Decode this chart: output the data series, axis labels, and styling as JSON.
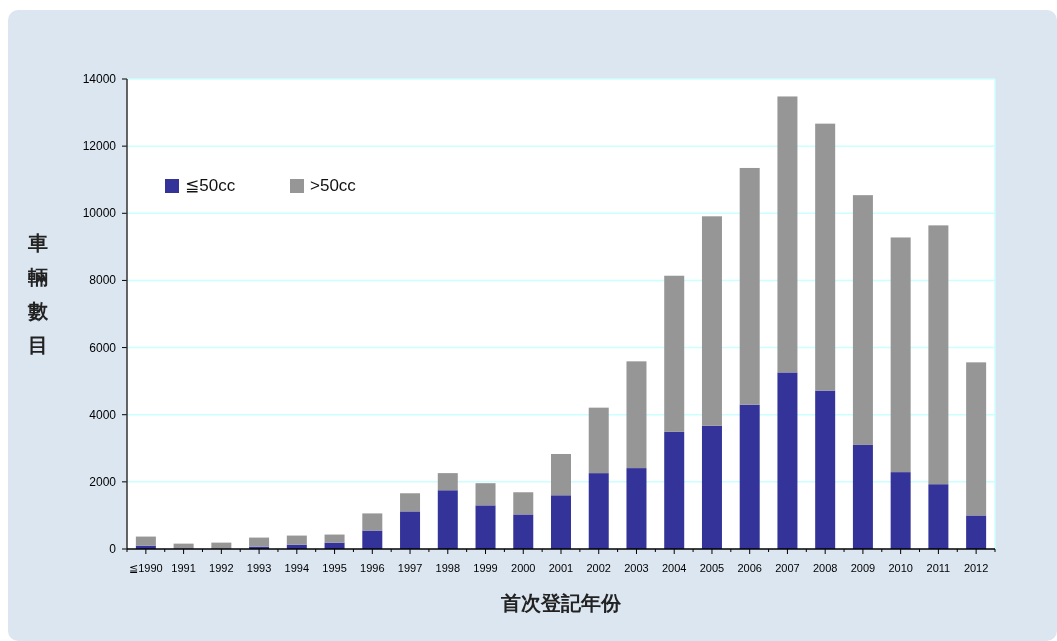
{
  "chart_data": {
    "type": "bar",
    "stacked": true,
    "ylabel": "車輛數目",
    "xlabel": "首次登記年份",
    "categories": [
      "≦1990",
      "1991",
      "1992",
      "1993",
      "1994",
      "1995",
      "1996",
      "1997",
      "1998",
      "1999",
      "2000",
      "2001",
      "2002",
      "2003",
      "2004",
      "2005",
      "2006",
      "2007",
      "2008",
      "2009",
      "2010",
      "2011",
      "2012"
    ],
    "series": [
      {
        "name": "≦50cc",
        "color": "#333399",
        "values": [
          100,
          0,
          0,
          70,
          130,
          190,
          550,
          1120,
          1750,
          1300,
          1030,
          1600,
          2260,
          2410,
          3490,
          3670,
          4300,
          5260,
          4720,
          3100,
          2290,
          1930,
          1000
        ]
      },
      {
        "name": ">50cc",
        "color": "#969696",
        "values": [
          270,
          160,
          190,
          270,
          270,
          240,
          510,
          540,
          510,
          660,
          660,
          1230,
          1950,
          3180,
          4650,
          6240,
          7050,
          8220,
          7950,
          7440,
          6990,
          7710,
          4560
        ]
      }
    ],
    "ylim": [
      0,
      14000
    ],
    "yticks": [
      0,
      2000,
      4000,
      6000,
      8000,
      10000,
      12000,
      14000
    ],
    "grid": "y",
    "legend": "top left"
  }
}
